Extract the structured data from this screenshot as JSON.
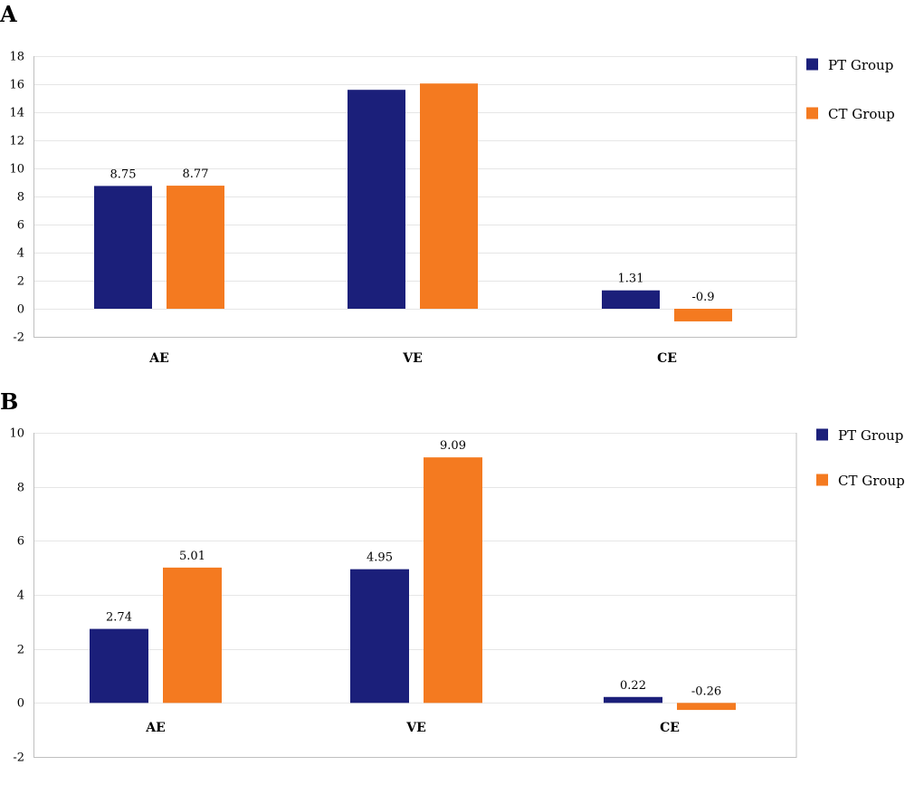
{
  "colors": {
    "pt": "#1b1f7a",
    "ct": "#f47a20"
  },
  "chart_data": [
    {
      "type": "bar",
      "panel": "A",
      "categories": [
        "AE",
        "VE",
        "CE"
      ],
      "ylim": [
        -2,
        18
      ],
      "yticks": [
        -2,
        0,
        2,
        4,
        6,
        8,
        10,
        12,
        14,
        16,
        18
      ],
      "grid": true,
      "legend_position": "right",
      "series": [
        {
          "name": "PT Group",
          "values": [
            8.75,
            15.6,
            1.31
          ],
          "labels": [
            "8.75",
            "",
            "1.31"
          ]
        },
        {
          "name": "CT Group",
          "values": [
            8.77,
            16.05,
            -0.9
          ],
          "labels": [
            "8.77",
            "",
            "-0.9"
          ]
        }
      ]
    },
    {
      "type": "bar",
      "panel": "B",
      "categories": [
        "AE",
        "VE",
        "CE"
      ],
      "ylim": [
        -2,
        10
      ],
      "yticks": [
        -2,
        0,
        2,
        4,
        6,
        8,
        10
      ],
      "grid": true,
      "legend_position": "right",
      "series": [
        {
          "name": "PT Group",
          "values": [
            2.74,
            4.95,
            0.22
          ],
          "labels": [
            "2.74",
            "4.95",
            "0.22"
          ]
        },
        {
          "name": "CT Group",
          "values": [
            5.01,
            9.09,
            -0.26
          ],
          "labels": [
            "5.01",
            "9.09",
            "-0.26"
          ]
        }
      ]
    }
  ]
}
